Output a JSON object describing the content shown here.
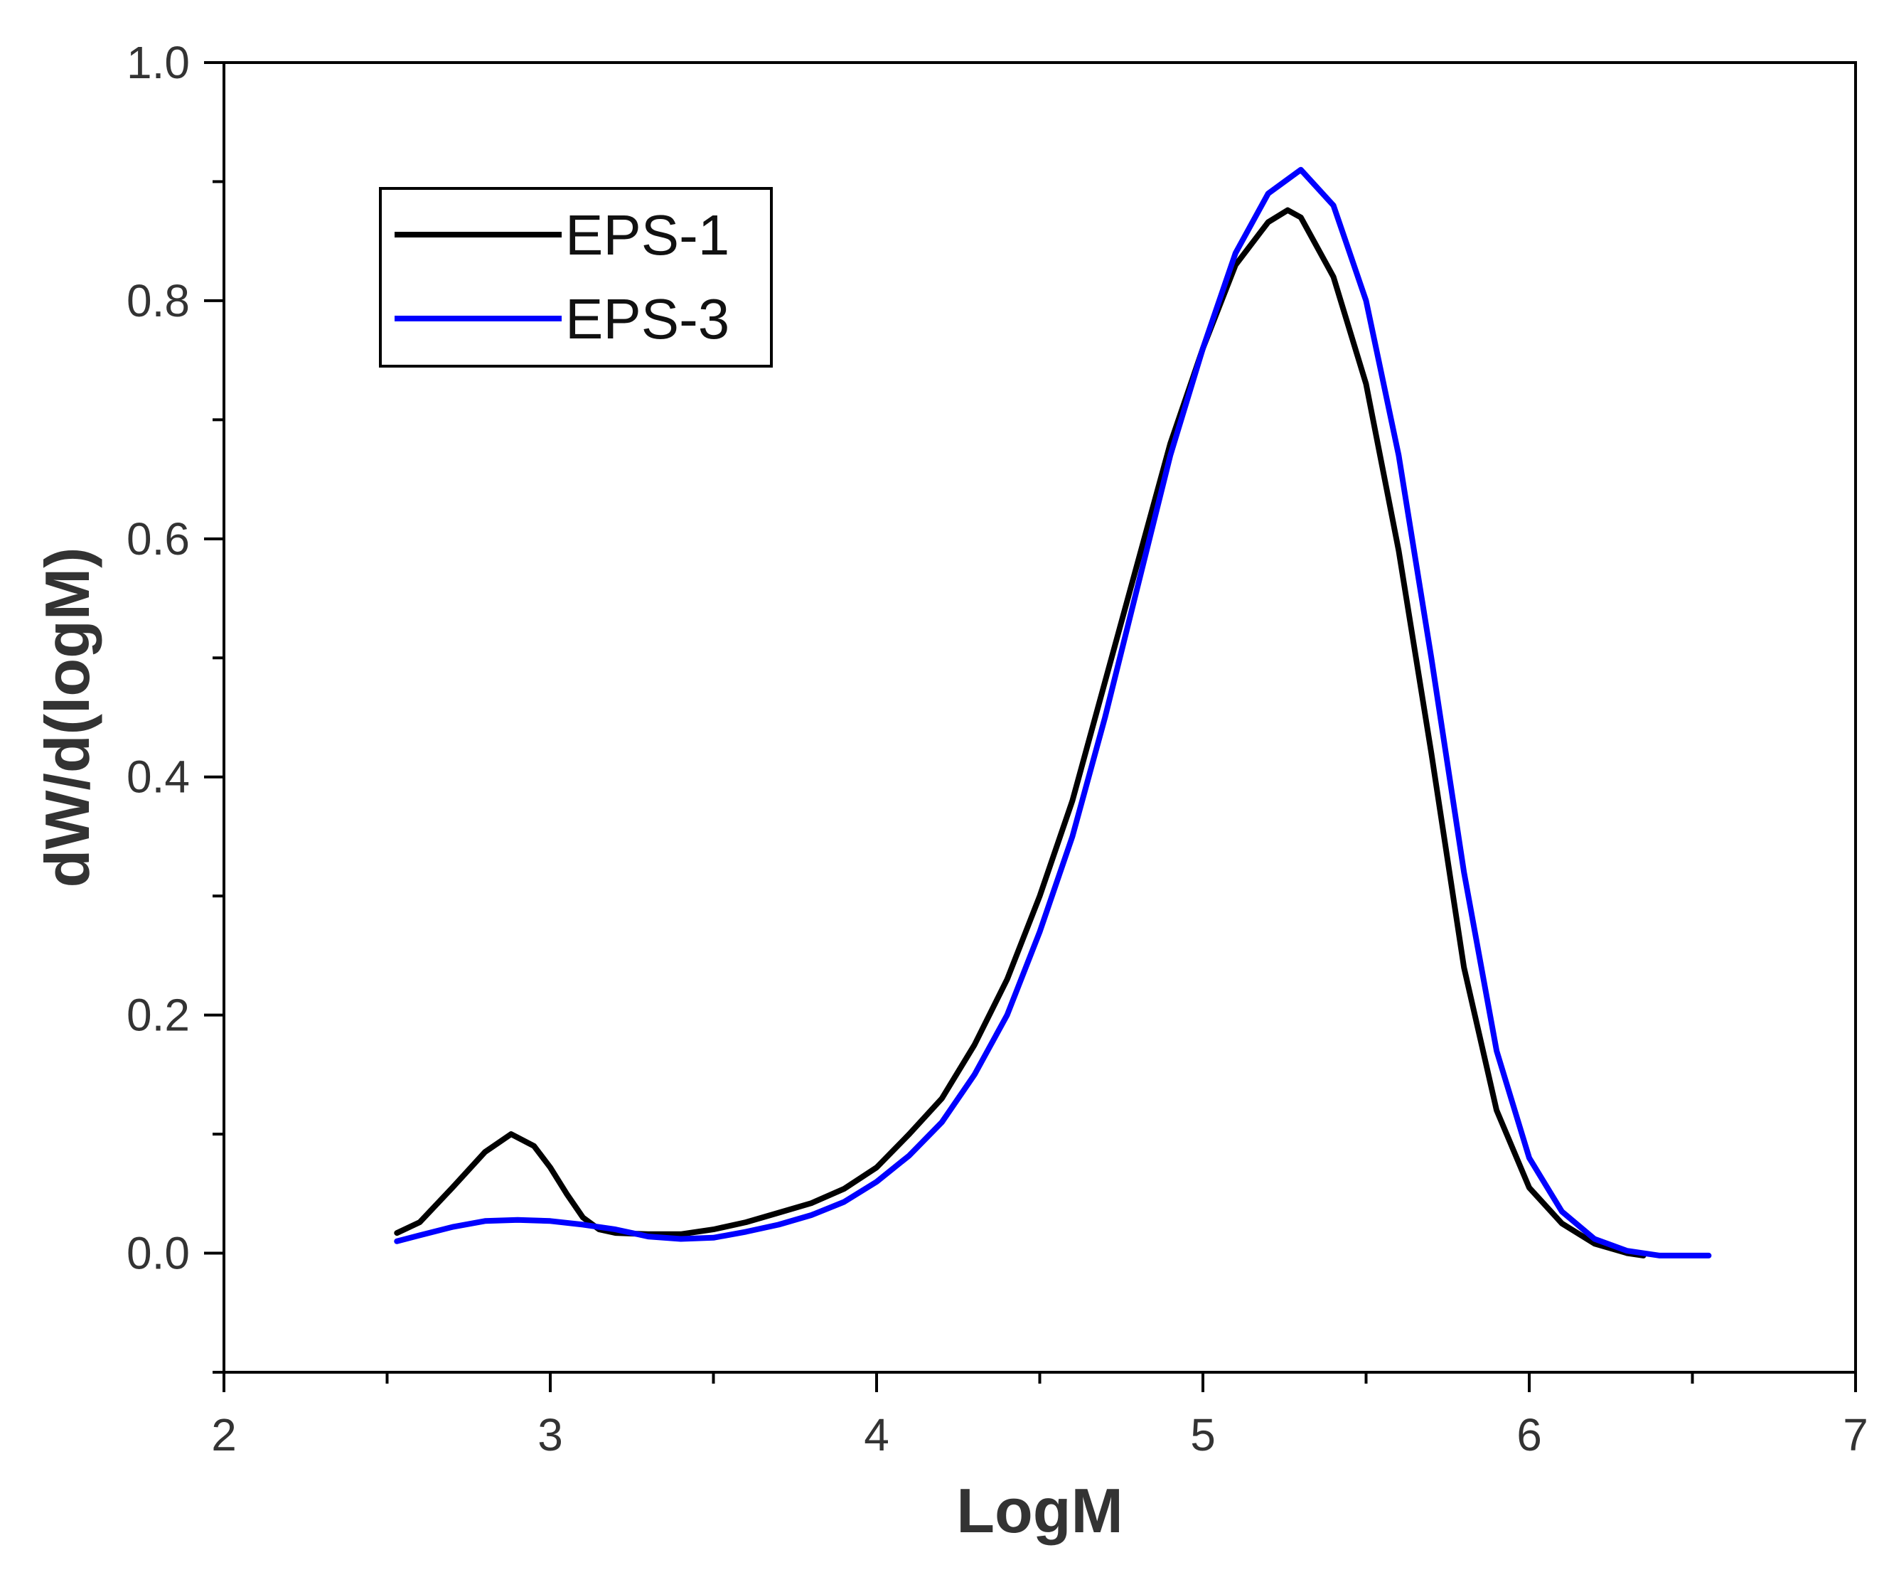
{
  "chart_data": {
    "type": "line",
    "title": "",
    "xlabel": "LogM",
    "ylabel": "dW/d(logM)",
    "xlim": [
      2,
      7
    ],
    "ylim": [
      -0.1,
      1.0
    ],
    "x_ticks": [
      "2",
      "3",
      "4",
      "5",
      "6",
      "7"
    ],
    "y_ticks": [
      "0.0",
      "0.2",
      "0.4",
      "0.6",
      "0.8",
      "1.0"
    ],
    "grid": false,
    "legend_position": "top-left",
    "series": [
      {
        "name": "EPS-1",
        "color": "#000000",
        "points": [
          [
            2.53,
            0.017
          ],
          [
            2.6,
            0.026
          ],
          [
            2.7,
            0.055
          ],
          [
            2.8,
            0.085
          ],
          [
            2.88,
            0.1
          ],
          [
            2.95,
            0.09
          ],
          [
            3.0,
            0.072
          ],
          [
            3.05,
            0.05
          ],
          [
            3.1,
            0.03
          ],
          [
            3.15,
            0.02
          ],
          [
            3.2,
            0.017
          ],
          [
            3.3,
            0.016
          ],
          [
            3.4,
            0.016
          ],
          [
            3.5,
            0.02
          ],
          [
            3.6,
            0.026
          ],
          [
            3.7,
            0.034
          ],
          [
            3.8,
            0.042
          ],
          [
            3.9,
            0.054
          ],
          [
            4.0,
            0.072
          ],
          [
            4.1,
            0.1
          ],
          [
            4.2,
            0.13
          ],
          [
            4.3,
            0.175
          ],
          [
            4.4,
            0.23
          ],
          [
            4.5,
            0.3
          ],
          [
            4.6,
            0.38
          ],
          [
            4.7,
            0.48
          ],
          [
            4.8,
            0.58
          ],
          [
            4.9,
            0.68
          ],
          [
            5.0,
            0.76
          ],
          [
            5.1,
            0.83
          ],
          [
            5.2,
            0.866
          ],
          [
            5.26,
            0.876
          ],
          [
            5.3,
            0.87
          ],
          [
            5.4,
            0.82
          ],
          [
            5.5,
            0.73
          ],
          [
            5.6,
            0.59
          ],
          [
            5.7,
            0.42
          ],
          [
            5.8,
            0.24
          ],
          [
            5.9,
            0.12
          ],
          [
            6.0,
            0.055
          ],
          [
            6.1,
            0.025
          ],
          [
            6.2,
            0.008
          ],
          [
            6.3,
            0.0
          ],
          [
            6.35,
            -0.002
          ]
        ]
      },
      {
        "name": "EPS-3",
        "color": "#0000ff",
        "points": [
          [
            2.53,
            0.01
          ],
          [
            2.6,
            0.015
          ],
          [
            2.7,
            0.022
          ],
          [
            2.8,
            0.027
          ],
          [
            2.9,
            0.028
          ],
          [
            3.0,
            0.027
          ],
          [
            3.1,
            0.024
          ],
          [
            3.2,
            0.02
          ],
          [
            3.3,
            0.014
          ],
          [
            3.4,
            0.012
          ],
          [
            3.5,
            0.013
          ],
          [
            3.6,
            0.018
          ],
          [
            3.7,
            0.024
          ],
          [
            3.8,
            0.032
          ],
          [
            3.9,
            0.043
          ],
          [
            4.0,
            0.06
          ],
          [
            4.1,
            0.082
          ],
          [
            4.2,
            0.11
          ],
          [
            4.3,
            0.15
          ],
          [
            4.4,
            0.2
          ],
          [
            4.5,
            0.27
          ],
          [
            4.6,
            0.35
          ],
          [
            4.7,
            0.45
          ],
          [
            4.8,
            0.56
          ],
          [
            4.9,
            0.67
          ],
          [
            5.0,
            0.76
          ],
          [
            5.1,
            0.84
          ],
          [
            5.2,
            0.89
          ],
          [
            5.3,
            0.91
          ],
          [
            5.4,
            0.88
          ],
          [
            5.5,
            0.8
          ],
          [
            5.6,
            0.67
          ],
          [
            5.7,
            0.5
          ],
          [
            5.8,
            0.32
          ],
          [
            5.9,
            0.17
          ],
          [
            6.0,
            0.08
          ],
          [
            6.1,
            0.035
          ],
          [
            6.2,
            0.012
          ],
          [
            6.3,
            0.002
          ],
          [
            6.4,
            -0.002
          ],
          [
            6.55,
            -0.002
          ]
        ]
      }
    ]
  }
}
